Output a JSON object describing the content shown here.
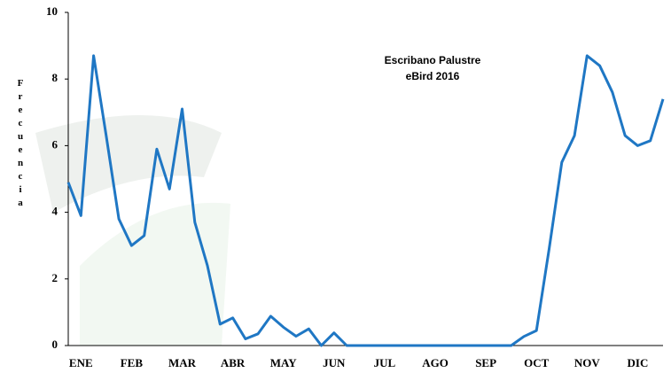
{
  "chart_data": {
    "type": "line",
    "title": "Escribano Palustre",
    "subtitle": "eBird 2016",
    "y_label": "Frecuencia",
    "categories": [
      null,
      "ENE",
      null,
      null,
      null,
      "FEB",
      null,
      null,
      null,
      "MAR",
      null,
      null,
      null,
      "ABR",
      null,
      null,
      null,
      "MAY",
      null,
      null,
      null,
      "JUN",
      null,
      null,
      null,
      "JUL",
      null,
      null,
      null,
      "AGO",
      null,
      null,
      null,
      "SEP",
      null,
      null,
      null,
      "OCT",
      null,
      null,
      null,
      "NOV",
      null,
      null,
      null,
      "DIC",
      null,
      null
    ],
    "values": [
      4.9,
      3.9,
      8.7,
      6.3,
      3.8,
      3.0,
      3.3,
      5.9,
      4.7,
      7.1,
      3.7,
      2.4,
      0.64,
      0.83,
      0.2,
      0.35,
      0.88,
      0.55,
      0.28,
      0.5,
      0,
      0.38,
      0,
      0,
      0,
      0,
      0,
      0,
      0,
      0,
      0,
      0,
      0,
      0,
      0,
      0,
      0.27,
      0.45,
      2.9,
      5.5,
      6.3,
      8.7,
      8.4,
      7.6,
      6.3,
      6.0,
      6.15,
      7.4
    ],
    "color": "#1f77c4",
    "ylim": [
      0,
      10
    ],
    "yticks": [
      0,
      2,
      4,
      6,
      8,
      10
    ]
  }
}
